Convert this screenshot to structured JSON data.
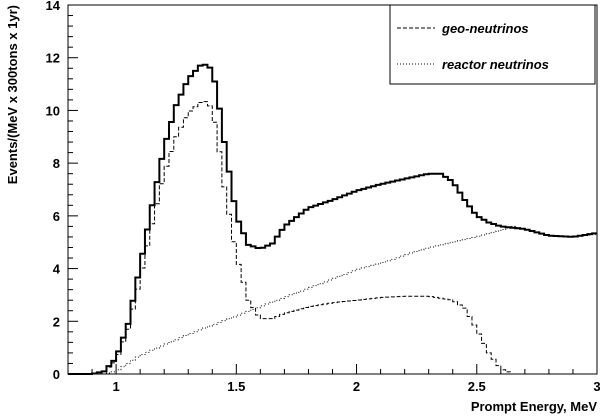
{
  "chart_data": {
    "type": "line",
    "xlabel": "Prompt Energy, MeV",
    "ylabel": "Events/(MeV x 300tons x 1yr)",
    "xlim": [
      0.8,
      3.0
    ],
    "ylim": [
      0,
      14
    ],
    "x_ticks": [
      "1",
      "1.5",
      "2",
      "2.5",
      "3"
    ],
    "x_tick_values": [
      1.0,
      1.5,
      2.0,
      2.5,
      3.0
    ],
    "y_ticks": [
      "0",
      "2",
      "4",
      "6",
      "8",
      "10",
      "12",
      "14"
    ],
    "y_tick_values": [
      0,
      2,
      4,
      6,
      8,
      10,
      12,
      14
    ],
    "legend_position": "top-right",
    "series": [
      {
        "name": "",
        "style": "solid-step",
        "color": "#000000",
        "x": [
          0.8,
          0.9,
          0.95,
          1.0,
          1.05,
          1.1,
          1.15,
          1.2,
          1.25,
          1.3,
          1.35,
          1.38,
          1.4,
          1.42,
          1.45,
          1.5,
          1.55,
          1.6,
          1.65,
          1.7,
          1.8,
          1.9,
          2.0,
          2.1,
          2.2,
          2.3,
          2.35,
          2.4,
          2.45,
          2.5,
          2.55,
          2.6,
          2.7,
          2.8,
          2.9,
          3.0
        ],
        "values": [
          0.0,
          0.0,
          0.1,
          0.6,
          1.9,
          4.1,
          6.4,
          8.6,
          10.2,
          11.2,
          11.7,
          11.75,
          11.5,
          10.7,
          8.8,
          6.0,
          4.9,
          4.75,
          4.95,
          5.6,
          6.3,
          6.6,
          6.95,
          7.2,
          7.4,
          7.6,
          7.6,
          7.3,
          6.6,
          6.0,
          5.75,
          5.6,
          5.5,
          5.25,
          5.2,
          5.35
        ]
      },
      {
        "name": "geo-neutrinos",
        "style": "dashed",
        "color": "#000000",
        "x": [
          0.8,
          0.9,
          0.95,
          1.0,
          1.05,
          1.1,
          1.15,
          1.2,
          1.25,
          1.3,
          1.35,
          1.38,
          1.4,
          1.42,
          1.45,
          1.5,
          1.55,
          1.6,
          1.65,
          1.7,
          1.8,
          1.9,
          2.0,
          2.1,
          2.2,
          2.3,
          2.4,
          2.45,
          2.5,
          2.55,
          2.6,
          2.65,
          2.7,
          2.8,
          2.9,
          3.0
        ],
        "values": [
          0.0,
          0.0,
          0.1,
          0.5,
          1.7,
          3.6,
          5.7,
          7.6,
          9.0,
          9.9,
          10.3,
          10.35,
          10.0,
          9.1,
          7.1,
          4.5,
          2.8,
          2.1,
          2.1,
          2.3,
          2.55,
          2.7,
          2.8,
          2.9,
          2.95,
          2.95,
          2.8,
          2.5,
          1.7,
          0.8,
          0.2,
          0.0,
          0.0,
          0.0,
          0.0,
          0.0
        ]
      },
      {
        "name": "reactor neutrinos",
        "style": "dotted",
        "color": "#000000",
        "x": [
          0.8,
          0.95,
          1.0,
          1.1,
          1.2,
          1.3,
          1.4,
          1.5,
          1.6,
          1.7,
          1.8,
          1.9,
          2.0,
          2.1,
          2.2,
          2.3,
          2.4,
          2.5,
          2.6,
          2.65,
          2.7,
          2.8,
          2.9,
          3.0
        ],
        "values": [
          0.0,
          0.0,
          0.1,
          0.7,
          1.1,
          1.5,
          1.85,
          2.2,
          2.55,
          2.9,
          3.25,
          3.6,
          3.95,
          4.2,
          4.5,
          4.8,
          5.0,
          5.2,
          5.45,
          5.6,
          5.5,
          5.25,
          5.2,
          5.3
        ]
      }
    ]
  }
}
